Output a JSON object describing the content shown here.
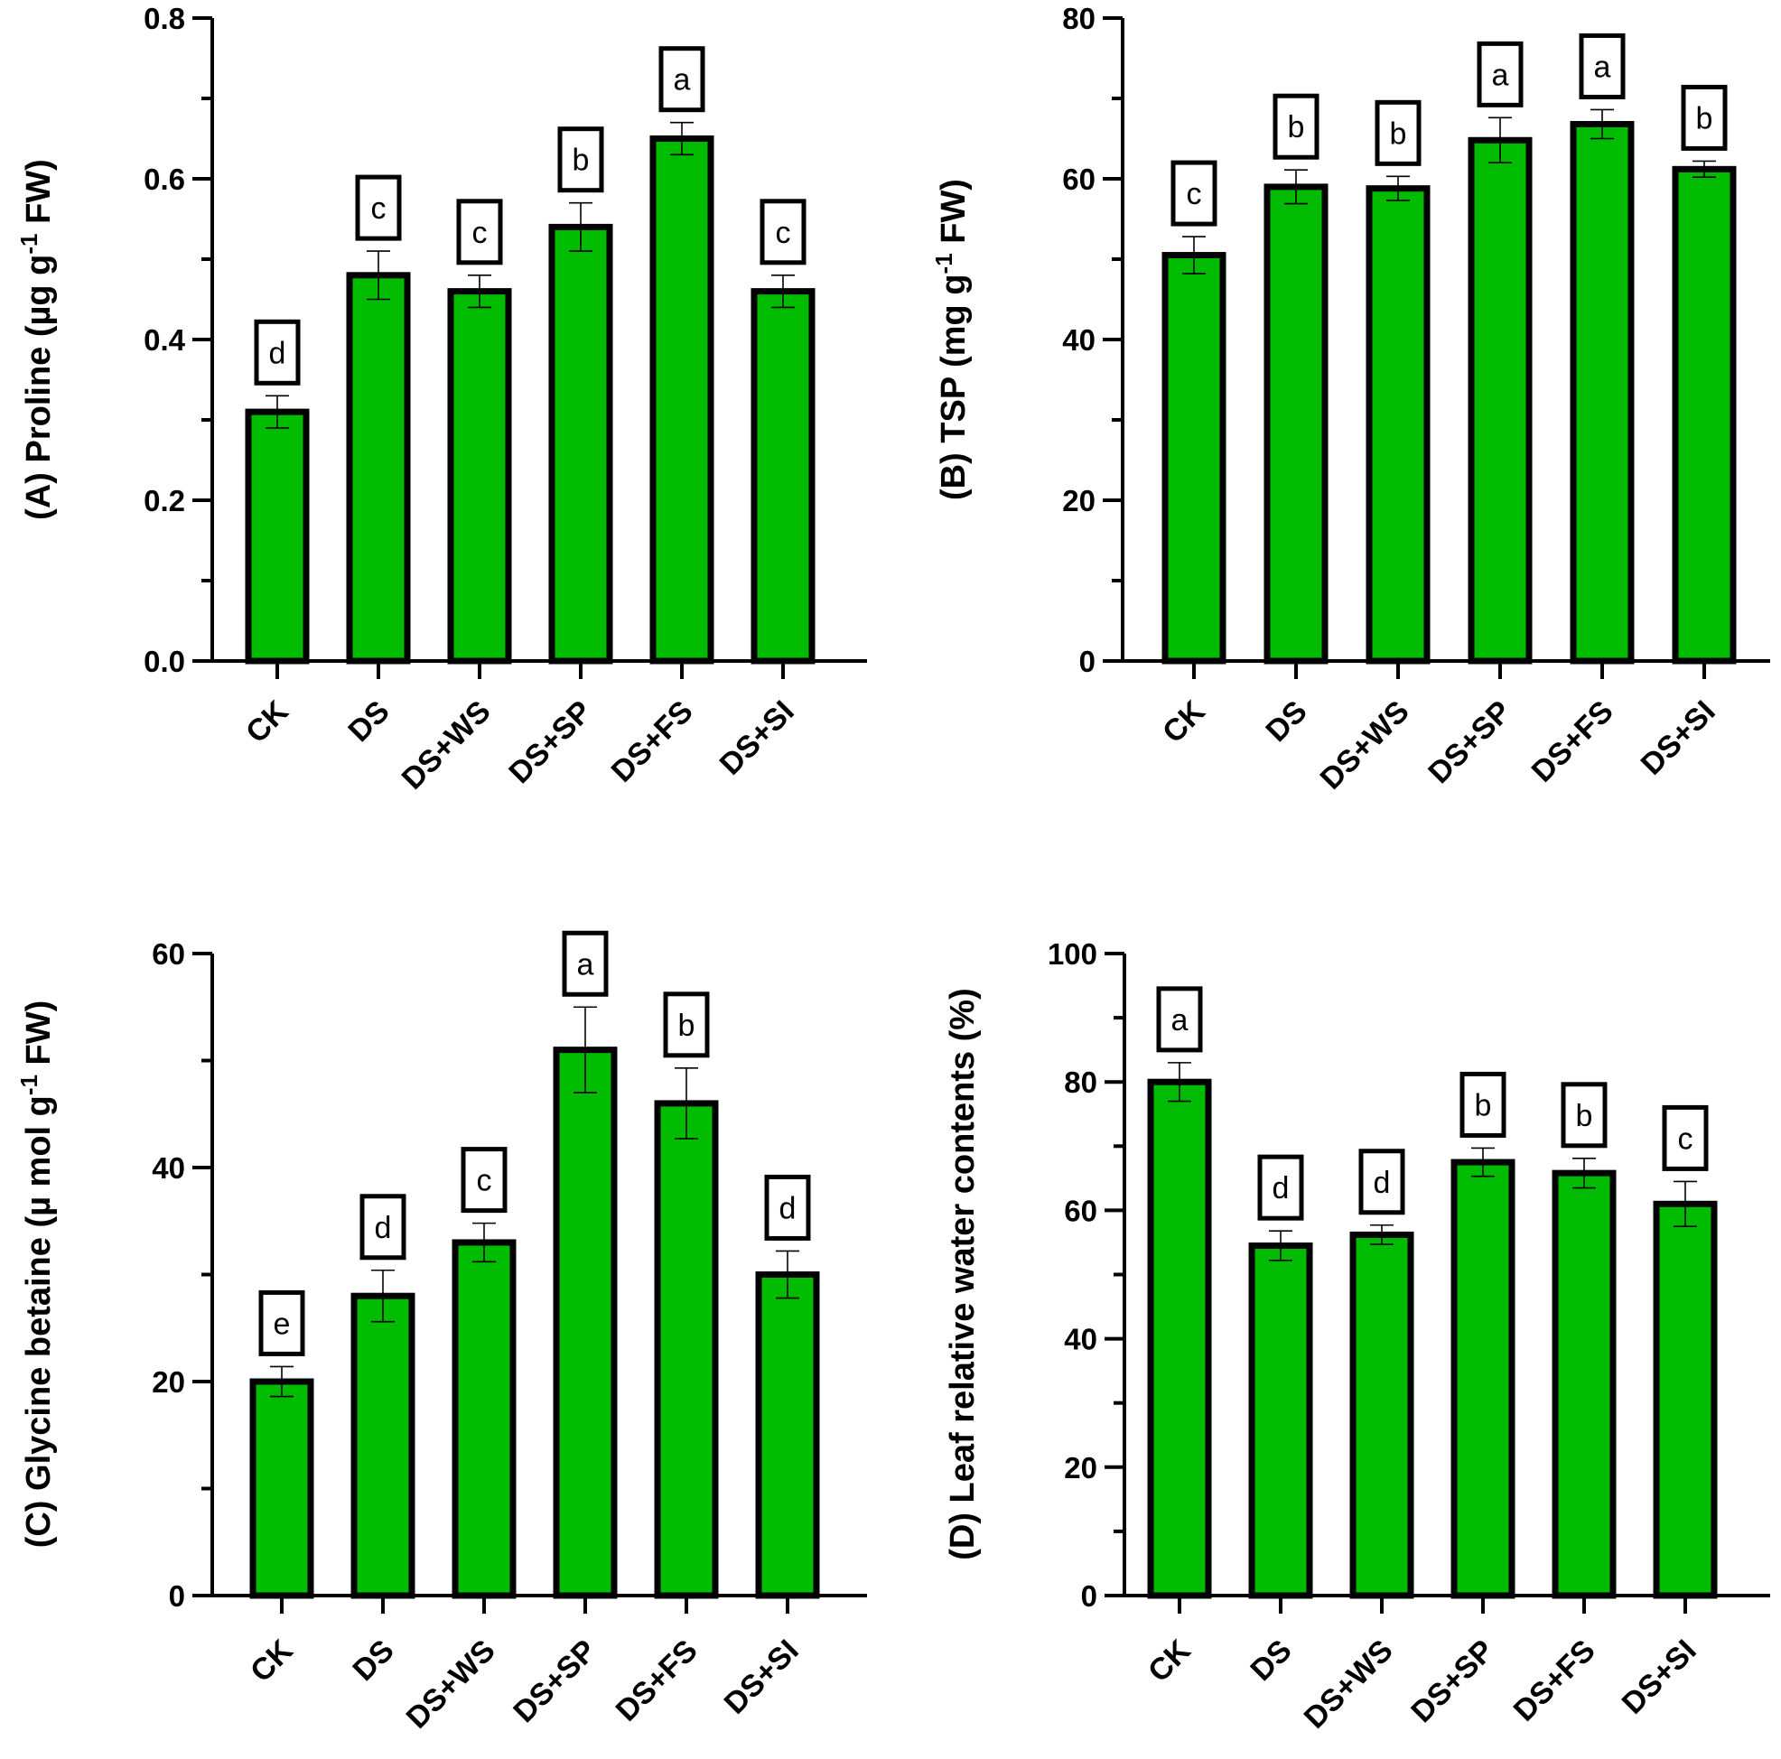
{
  "chart_data": [
    {
      "type": "bar",
      "panel": "A",
      "ylabel": {
        "main": "(A) Proline (µg g",
        "sup": "-1",
        "tail": " FW)"
      },
      "categories": [
        "CK",
        "DS",
        "DS+WS",
        "DS+SP",
        "DS+FS",
        "DS+SI"
      ],
      "values": [
        0.31,
        0.48,
        0.46,
        0.54,
        0.65,
        0.46
      ],
      "errors": [
        0.02,
        0.03,
        0.02,
        0.03,
        0.02,
        0.02
      ],
      "letters": [
        "d",
        "c",
        "c",
        "b",
        "a",
        "c"
      ],
      "ylim": [
        0,
        0.8
      ],
      "yticks": [
        0.0,
        0.2,
        0.4,
        0.6,
        0.8
      ],
      "ytick_labels": [
        "0.0",
        "0.2",
        "0.4",
        "0.6",
        "0.8"
      ],
      "bar_color": "#00bb00"
    },
    {
      "type": "bar",
      "panel": "B",
      "ylabel": {
        "main": "(B) TSP  (mg g",
        "sup": "-1",
        "tail": " FW)"
      },
      "categories": [
        "CK",
        "DS",
        "DS+WS",
        "DS+SP",
        "DS+FS",
        "DS+SI"
      ],
      "values": [
        50.5,
        59,
        58.8,
        64.8,
        66.8,
        61.2
      ],
      "errors": [
        2.3,
        2.1,
        1.5,
        2.8,
        1.8,
        1.0
      ],
      "letters": [
        "c",
        "b",
        "b",
        "a",
        "a",
        "b"
      ],
      "ylim": [
        0,
        80
      ],
      "yticks": [
        0,
        20,
        40,
        60,
        80
      ],
      "ytick_labels": [
        "0",
        "20",
        "40",
        "60",
        "80"
      ],
      "bar_color": "#00bb00"
    },
    {
      "type": "bar",
      "panel": "C",
      "ylabel": {
        "main": "(C) Glycine betaine (µ mol g",
        "sup": "-1",
        "tail": " FW)"
      },
      "categories": [
        "CK",
        "DS",
        "DS+WS",
        "DS+SP",
        "DS+FS",
        "DS+SI"
      ],
      "values": [
        20,
        28,
        33,
        51,
        46,
        30
      ],
      "errors": [
        1.4,
        2.4,
        1.8,
        4.0,
        3.3,
        2.2
      ],
      "letters": [
        "e",
        "d",
        "c",
        "a",
        "b",
        "d"
      ],
      "ylim": [
        0,
        60
      ],
      "yticks": [
        0,
        20,
        40,
        60
      ],
      "ytick_labels": [
        "0",
        "20",
        "40",
        "60"
      ],
      "bar_color": "#00bb00"
    },
    {
      "type": "bar",
      "panel": "D",
      "ylabel": {
        "main": "(D) Leaf relative water contents (%)",
        "sup": "",
        "tail": ""
      },
      "categories": [
        "CK",
        "DS",
        "DS+WS",
        "DS+SP",
        "DS+FS",
        "DS+SI"
      ],
      "values": [
        80,
        54.5,
        56.2,
        67.5,
        65.8,
        61
      ],
      "errors": [
        3.0,
        2.3,
        1.5,
        2.2,
        2.3,
        3.5
      ],
      "letters": [
        "a",
        "d",
        "d",
        "b",
        "b",
        "c"
      ],
      "ylim": [
        0,
        100
      ],
      "yticks": [
        0,
        20,
        40,
        60,
        80,
        100
      ],
      "ytick_labels": [
        "0",
        "20",
        "40",
        "60",
        "80",
        "100"
      ],
      "bar_color": "#00bb00"
    }
  ]
}
